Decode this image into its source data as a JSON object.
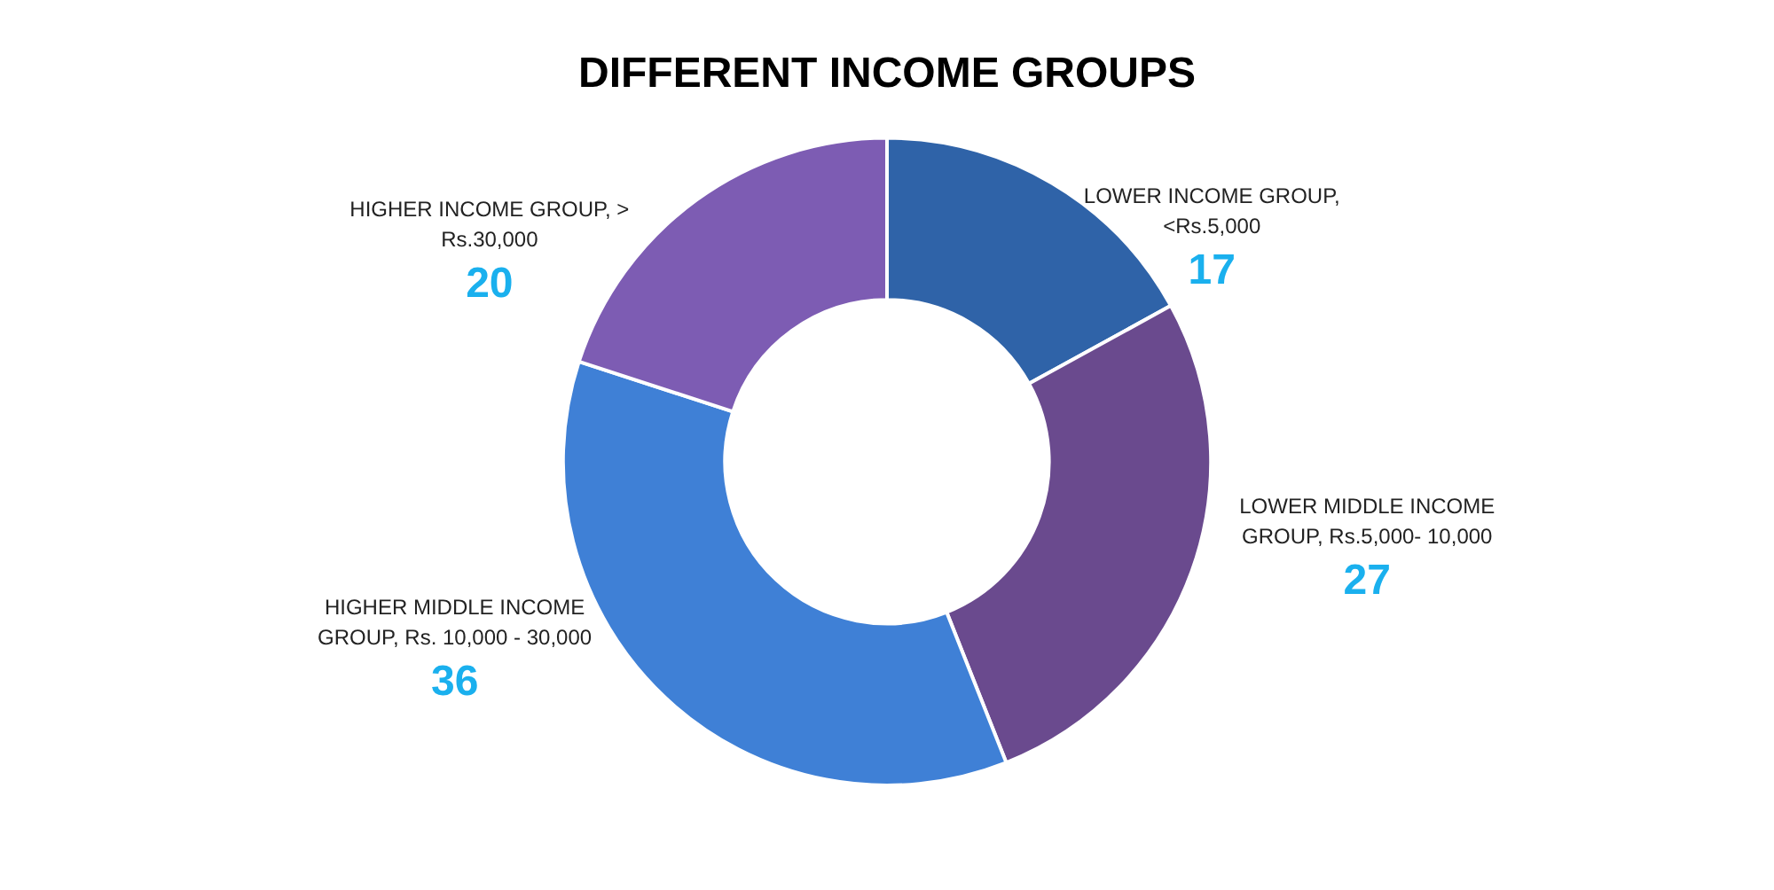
{
  "chart_data": {
    "type": "donut",
    "title": "DIFFERENT INCOME GROUPS",
    "categories": [
      "LOWER INCOME GROUP, <Rs.5,000",
      "LOWER MIDDLE INCOME GROUP, Rs.5,000- 10,000",
      "HIGHER MIDDLE INCOME GROUP, Rs. 10,000 - 30,000",
      "HIGHER INCOME GROUP, > Rs.30,000"
    ],
    "values": [
      17,
      27,
      36,
      20
    ],
    "colors": [
      "#2f63a8",
      "#6a4a8e",
      "#3f80d6",
      "#7d5cb3"
    ],
    "data_labels": true,
    "legend": false
  }
}
